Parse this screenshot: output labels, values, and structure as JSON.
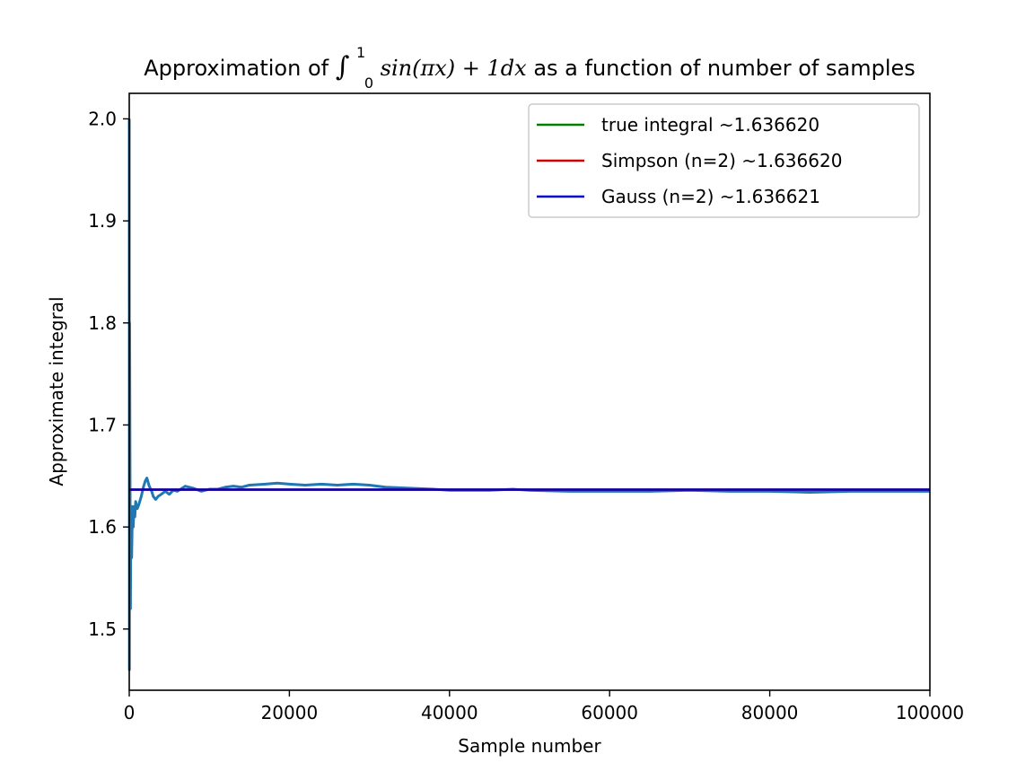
{
  "chart_data": {
    "type": "line",
    "title": {
      "prefix": "Approximation of ",
      "integral_sign": "∫",
      "upper_limit": "1",
      "lower_limit": "0",
      "integrand": "sin(πx) + 1dx",
      "suffix": " as a function of number of samples"
    },
    "xlabel": "Sample number",
    "ylabel": "Approximate integral",
    "xlim": [
      0,
      100000
    ],
    "ylim": [
      1.44,
      2.025
    ],
    "x_ticks": [
      0,
      20000,
      40000,
      60000,
      80000,
      100000
    ],
    "x_tick_labels": [
      "0",
      "20000",
      "40000",
      "60000",
      "80000",
      "100000"
    ],
    "y_ticks": [
      1.5,
      1.6,
      1.7,
      1.8,
      1.9,
      2.0
    ],
    "y_tick_labels": [
      "1.5",
      "1.6",
      "1.7",
      "1.8",
      "1.9",
      "2.0"
    ],
    "grid": false,
    "legend_position": "top-right",
    "series": [
      {
        "name": "true integral  ~1.636620",
        "kind": "hline",
        "y": 1.63662,
        "color": "#008000"
      },
      {
        "name": "Simpson (n=2)  ~1.636620",
        "kind": "hline",
        "y": 1.63662,
        "color": "#cc0000"
      },
      {
        "name": "Gauss (n=2)  ~1.636621",
        "kind": "hline",
        "y": 1.636621,
        "color": "#0000cc"
      },
      {
        "kind": "line",
        "color": "#1f77b4",
        "x": [
          1,
          20,
          50,
          100,
          150,
          200,
          300,
          400,
          500,
          600,
          700,
          800,
          1000,
          1200,
          1500,
          1800,
          2000,
          2200,
          2500,
          2800,
          3000,
          3300,
          3600,
          4000,
          4500,
          5000,
          5500,
          6000,
          7000,
          8000,
          9000,
          10000,
          11000,
          12000,
          13000,
          14000,
          15000,
          17000,
          18500,
          20000,
          22000,
          24000,
          26000,
          28000,
          30000,
          32000,
          35000,
          38000,
          40000,
          45000,
          48000,
          50000,
          55000,
          60000,
          65000,
          70000,
          75000,
          80000,
          85000,
          90000,
          95000,
          100000
        ],
        "y": [
          2.0,
          1.46,
          1.8,
          1.65,
          1.52,
          1.6,
          1.57,
          1.62,
          1.6,
          1.62,
          1.61,
          1.625,
          1.618,
          1.622,
          1.63,
          1.64,
          1.645,
          1.648,
          1.64,
          1.635,
          1.63,
          1.627,
          1.63,
          1.632,
          1.635,
          1.632,
          1.636,
          1.635,
          1.64,
          1.638,
          1.635,
          1.637,
          1.637,
          1.639,
          1.64,
          1.639,
          1.641,
          1.642,
          1.643,
          1.642,
          1.641,
          1.642,
          1.641,
          1.642,
          1.641,
          1.639,
          1.638,
          1.637,
          1.636,
          1.636,
          1.637,
          1.636,
          1.635,
          1.635,
          1.635,
          1.636,
          1.635,
          1.635,
          1.634,
          1.635,
          1.635,
          1.635
        ]
      }
    ]
  }
}
